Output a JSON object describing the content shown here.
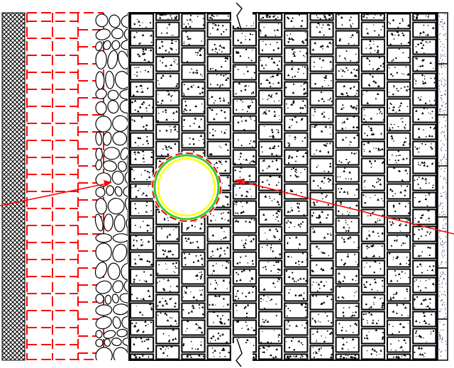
{
  "drawing": {
    "view_title": "",
    "labels": [],
    "layers": [
      {
        "name": "cross-hatch-insulation",
        "pattern": "crosshatch",
        "color": "#000000"
      },
      {
        "name": "red-dashed-grid-wall",
        "pattern": "dashed-grid",
        "color": "#ff0000"
      },
      {
        "name": "rubble-stone-fill",
        "pattern": "stones",
        "color": "#000000"
      },
      {
        "name": "concrete-block-masonry",
        "pattern": "blocks-with-stipple",
        "color": "#000000"
      },
      {
        "name": "blue-speckled-edge",
        "pattern": "speckle",
        "color": "#1a1a66"
      }
    ],
    "pipe": {
      "outer_color": "#33cc33",
      "middle_color": "#ff0000",
      "inner_color": "#ffff00"
    },
    "leaders": {
      "color": "#ff0000",
      "count": 2
    },
    "break_marks": [
      "top",
      "bottom"
    ]
  }
}
